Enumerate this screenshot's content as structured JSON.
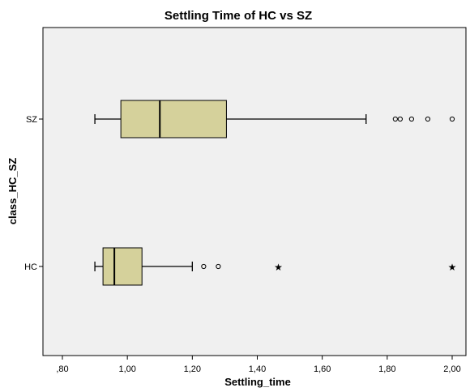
{
  "chart_data": {
    "type": "boxplot",
    "orientation": "horizontal",
    "title": "Settling Time of HC vs SZ",
    "xlabel": "Settling_time",
    "ylabel": "class_HC_SZ",
    "xlim": [
      0.75,
      2.05
    ],
    "x_ticks": [
      0.8,
      1.0,
      1.2,
      1.4,
      1.6,
      1.8,
      2.0
    ],
    "x_tick_labels": [
      ",80",
      "1,00",
      "1,20",
      "1,40",
      "1,60",
      "1,80",
      "2,00"
    ],
    "categories": [
      "SZ",
      "HC"
    ],
    "boxes": [
      {
        "category": "SZ",
        "whisker_low": 0.9,
        "q1": 0.98,
        "median": 1.1,
        "q3": 1.305,
        "whisker_high": 1.735,
        "outliers": [
          1.825,
          1.84,
          1.875,
          1.925,
          2.0
        ],
        "extremes": []
      },
      {
        "category": "HC",
        "whisker_low": 0.9,
        "q1": 0.925,
        "median": 0.96,
        "q3": 1.045,
        "whisker_high": 1.2,
        "outliers": [
          1.235,
          1.28
        ],
        "extremes": [
          1.465,
          2.0
        ]
      }
    ],
    "grid": false,
    "legend": "none",
    "colors": {
      "box_fill": "#d5d19b",
      "plot_background": "#f0f0f0",
      "line": "#000000"
    }
  }
}
